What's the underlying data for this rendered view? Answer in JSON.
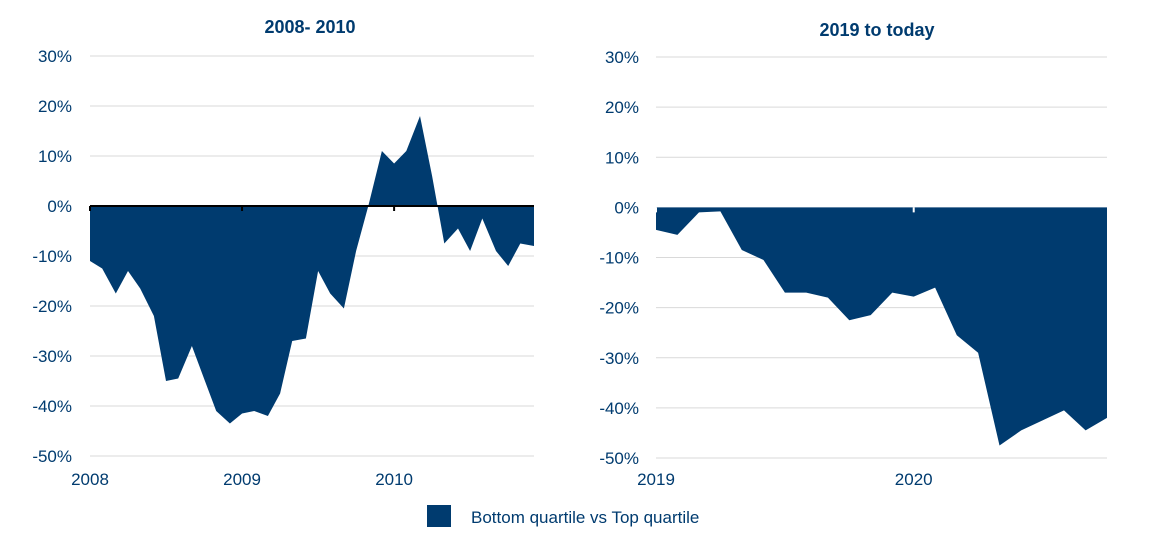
{
  "legend": {
    "label": "Bottom quartile vs Top quartile",
    "color": "#003b6f"
  },
  "chart_data": [
    {
      "type": "area",
      "title": "2008- 2010",
      "ylim": [
        -0.5,
        0.3
      ],
      "yticks": [
        "30%",
        "20%",
        "10%",
        "0%",
        "-10%",
        "-20%",
        "-30%",
        "-40%",
        "-50%"
      ],
      "ytick_values": [
        0.3,
        0.2,
        0.1,
        0.0,
        -0.1,
        -0.2,
        -0.3,
        -0.4,
        -0.5
      ],
      "xlim": [
        2008.0,
        2010.92
      ],
      "xticks": [
        "2008",
        "2009",
        "2010"
      ],
      "xtick_values": [
        2008,
        2009,
        2010
      ],
      "grid": true,
      "zero_line": true,
      "series": [
        {
          "name": "Bottom quartile vs Top quartile",
          "color": "#003b6f",
          "x": [
            2008.0,
            2008.08,
            2008.17,
            2008.25,
            2008.33,
            2008.42,
            2008.5,
            2008.58,
            2008.67,
            2008.75,
            2008.83,
            2008.92,
            2009.0,
            2009.08,
            2009.17,
            2009.25,
            2009.33,
            2009.42,
            2009.5,
            2009.58,
            2009.67,
            2009.75,
            2009.83,
            2009.92,
            2010.0,
            2010.08,
            2010.17,
            2010.25,
            2010.33,
            2010.42,
            2010.5,
            2010.58,
            2010.67,
            2010.75,
            2010.83,
            2010.92
          ],
          "y": [
            -0.11,
            -0.125,
            -0.175,
            -0.13,
            -0.165,
            -0.22,
            -0.35,
            -0.345,
            -0.28,
            -0.345,
            -0.41,
            -0.435,
            -0.415,
            -0.41,
            -0.42,
            -0.375,
            -0.27,
            -0.265,
            -0.13,
            -0.175,
            -0.205,
            -0.09,
            0.0,
            0.11,
            0.085,
            0.11,
            0.18,
            0.06,
            -0.075,
            -0.045,
            -0.09,
            -0.025,
            -0.09,
            -0.12,
            -0.075,
            -0.08
          ]
        }
      ]
    },
    {
      "type": "area",
      "title": "2019 to today",
      "ylim": [
        -0.5,
        0.3
      ],
      "yticks": [
        "30%",
        "20%",
        "10%",
        "0%",
        "-10%",
        "-20%",
        "-30%",
        "-40%",
        "-50%"
      ],
      "ytick_values": [
        0.3,
        0.2,
        0.1,
        0.0,
        -0.1,
        -0.2,
        -0.3,
        -0.4,
        -0.5
      ],
      "xlim": [
        2019.0,
        2020.75
      ],
      "xticks": [
        "2019",
        "2020"
      ],
      "xtick_values": [
        2019,
        2020
      ],
      "grid": true,
      "zero_line": false,
      "series": [
        {
          "name": "Bottom quartile vs Top quartile",
          "color": "#003b6f",
          "x": [
            2019.0,
            2019.083,
            2019.167,
            2019.25,
            2019.333,
            2019.417,
            2019.5,
            2019.583,
            2019.667,
            2019.75,
            2019.833,
            2019.917,
            2020.0,
            2020.083,
            2020.167,
            2020.25,
            2020.333,
            2020.417,
            2020.5,
            2020.583,
            2020.667,
            2020.75
          ],
          "y": [
            -0.045,
            -0.055,
            -0.01,
            -0.008,
            -0.085,
            -0.105,
            -0.17,
            -0.17,
            -0.18,
            -0.225,
            -0.215,
            -0.17,
            -0.178,
            -0.16,
            -0.255,
            -0.29,
            -0.475,
            -0.445,
            -0.425,
            -0.405,
            -0.445,
            -0.42
          ]
        }
      ]
    }
  ]
}
